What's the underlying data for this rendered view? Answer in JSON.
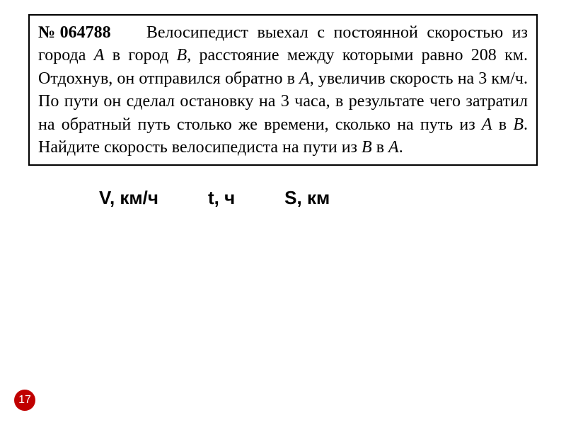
{
  "problem": {
    "number": "№064788",
    "text_parts": {
      "part1": "Велосипедист выехал с постоянной скоростью из города ",
      "cityA1": "А",
      "part2": " в город ",
      "cityB1": "В",
      "part3": ", расстояние между которыми равно 208 км. Отдохнув, он отправился обратно в ",
      "cityA2": "А",
      "part4": ", увеличив скорость на 3 км/ч. По пути он сделал остановку на 3 часа, в результате чего затратил на обратный путь столько же времени, сколько на путь из ",
      "cityA3": "А",
      "part5": " в ",
      "cityB2": "В",
      "part6": ". Найдите скорость велосипедиста на пути из ",
      "cityB3": "В",
      "part7": " в ",
      "cityA4": "А",
      "part8": "."
    }
  },
  "table_headers": {
    "col1": "V, км/ч",
    "col2": "t, ч",
    "col3": "S, км"
  },
  "page_number": "17",
  "colors": {
    "page_number_bg": "#c00000",
    "page_number_text": "#ffffff",
    "border": "#000000",
    "background": "#ffffff"
  }
}
